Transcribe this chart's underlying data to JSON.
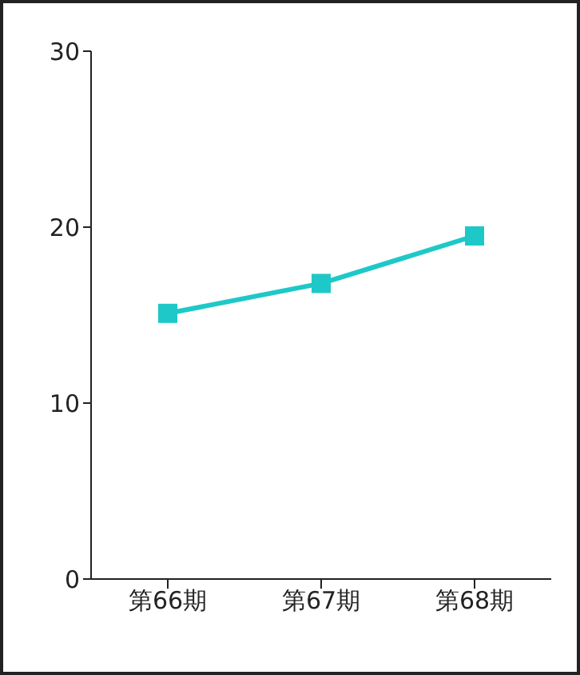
{
  "chart_data": {
    "type": "line",
    "categories": [
      "第66期",
      "第67期",
      "第68期"
    ],
    "series": [
      {
        "color": "#1ec8c8",
        "values": [
          15.1,
          16.8,
          19.5
        ]
      }
    ],
    "ylim": [
      0,
      30
    ],
    "yticks": [
      0,
      10,
      20,
      30
    ],
    "marker": "square",
    "line_style": "solid"
  }
}
